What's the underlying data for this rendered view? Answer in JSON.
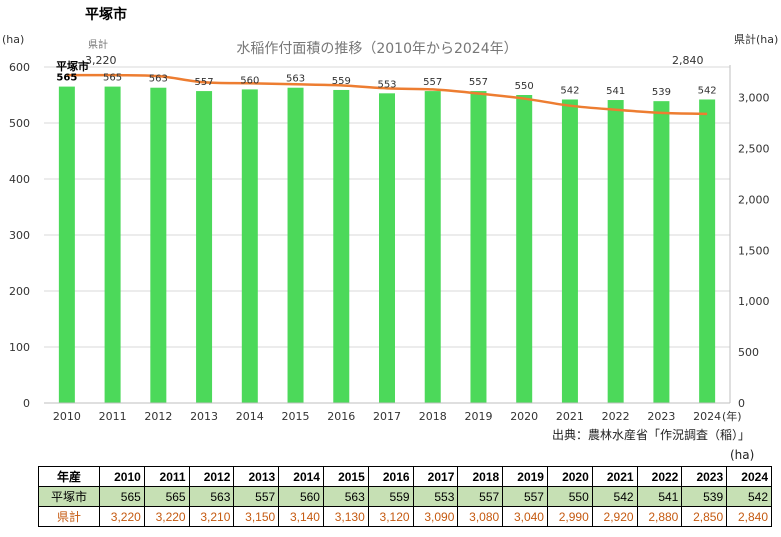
{
  "page_title": "平塚市",
  "source_note": "出典：農林水産省「作況調査（稲）」",
  "table": {
    "unit": "(ha)",
    "header_label": "年産",
    "years": [
      "2010",
      "2011",
      "2012",
      "2013",
      "2014",
      "2015",
      "2016",
      "2017",
      "2018",
      "2019",
      "2020",
      "2021",
      "2022",
      "2023",
      "2024"
    ],
    "rows": [
      {
        "label": "平塚市",
        "values": [
          "565",
          "565",
          "563",
          "557",
          "560",
          "563",
          "559",
          "553",
          "557",
          "557",
          "550",
          "542",
          "541",
          "539",
          "542"
        ]
      },
      {
        "label": "県計",
        "values": [
          "3,220",
          "3,220",
          "3,210",
          "3,150",
          "3,140",
          "3,130",
          "3,120",
          "3,090",
          "3,080",
          "3,040",
          "2,990",
          "2,920",
          "2,880",
          "2,850",
          "2,840"
        ]
      }
    ]
  },
  "colors": {
    "bar": "#4cd95a",
    "line": "#ed7d31",
    "grid": "#d9d9d9"
  },
  "chart_data": {
    "type": "bar",
    "title": "水稲作付面積の推移（2010年から2024年）",
    "categories": [
      "2010",
      "2011",
      "2012",
      "2013",
      "2014",
      "2015",
      "2016",
      "2017",
      "2018",
      "2019",
      "2020",
      "2021",
      "2022",
      "2023",
      "2024"
    ],
    "x_unit": "(年)",
    "series": [
      {
        "name": "平塚市",
        "type": "bar",
        "axis": "left",
        "values": [
          565,
          565,
          563,
          557,
          560,
          563,
          559,
          553,
          557,
          557,
          550,
          542,
          541,
          539,
          542
        ]
      },
      {
        "name": "県計",
        "type": "line",
        "axis": "right",
        "values": [
          3220,
          3220,
          3210,
          3150,
          3140,
          3130,
          3120,
          3090,
          3080,
          3040,
          2990,
          2920,
          2880,
          2850,
          2840
        ]
      }
    ],
    "y_left": {
      "unit": "(ha)",
      "min": 0,
      "max": 600,
      "ticks": [
        0,
        100,
        200,
        300,
        400,
        500,
        600
      ]
    },
    "y_right": {
      "unit": "県計(ha)",
      "min": 0,
      "max": 3300,
      "ticks": [
        0,
        500,
        1000,
        1500,
        2000,
        2500,
        3000
      ],
      "tick_labels": [
        "0",
        "500",
        "1,000",
        "1,500",
        "2,000",
        "2,500",
        "3,000"
      ]
    },
    "annotations": {
      "bar_series_label": "平塚市",
      "line_series_label": "県計",
      "line_first_value": "3,220",
      "line_last_value": "2,840"
    },
    "grid": true
  }
}
